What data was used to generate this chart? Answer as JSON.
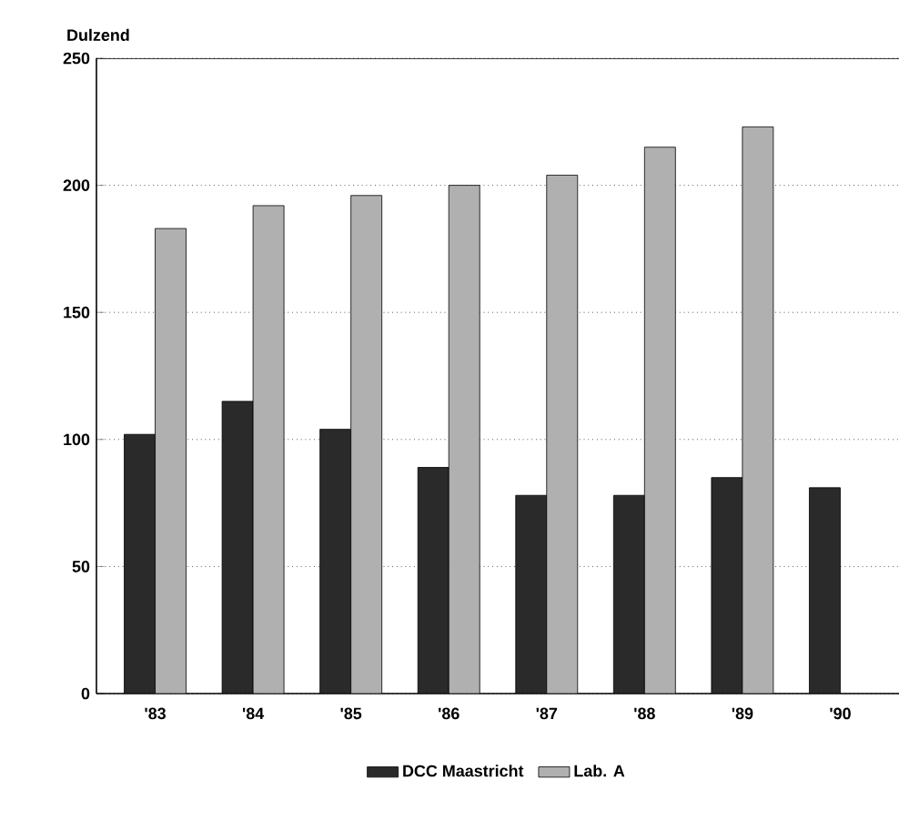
{
  "chart_data": {
    "type": "bar",
    "ylabel": "Dulzend",
    "categories": [
      "'83",
      "'84",
      "'85",
      "'86",
      "'87",
      "'88",
      "'89",
      "'90"
    ],
    "series": [
      {
        "name": "DCC Maastricht",
        "color": "#2a2a2a",
        "values": [
          102,
          115,
          104,
          89,
          78,
          78,
          85,
          81
        ]
      },
      {
        "name": "Lab. A",
        "color": "#b0b0b0",
        "values": [
          183,
          192,
          196,
          200,
          204,
          215,
          223,
          null
        ]
      }
    ],
    "ylim": [
      0,
      250
    ],
    "yticks": [
      0,
      50,
      100,
      150,
      200,
      250
    ],
    "grid": "y",
    "legend": "bottom"
  }
}
